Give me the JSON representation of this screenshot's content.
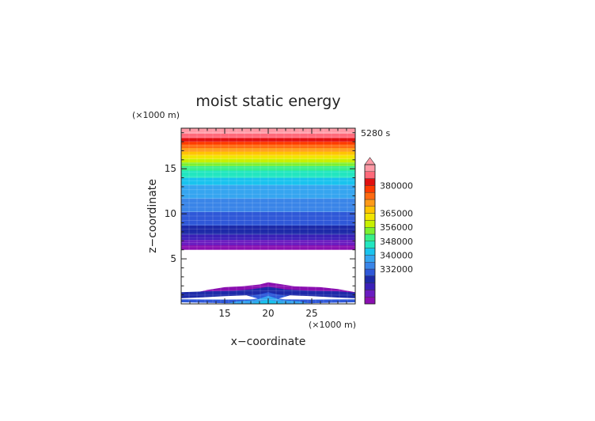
{
  "chart_data": {
    "type": "heatmap",
    "title": "moist static energy",
    "time_label": "5280 s",
    "xlabel": "x−coordinate",
    "ylabel": "z−coordinate",
    "x_unit": "(×1000 m)",
    "y_unit": "(×1000 m)",
    "xlim": [
      10,
      30
    ],
    "ylim": [
      0,
      19.5
    ],
    "x_ticks": [
      "15",
      "20",
      "25"
    ],
    "y_ticks": [
      "5",
      "10",
      "15"
    ],
    "x_tick_values": [
      15,
      20,
      25
    ],
    "y_tick_values": [
      5,
      10,
      15
    ],
    "grid": true,
    "legend": "right",
    "colorbar": {
      "labels": [
        "380000",
        "365000",
        "356000",
        "348000",
        "340000",
        "332000"
      ],
      "extend": "max",
      "colors": [
        "#8a0fb0",
        "#6a1cc0",
        "#3a20b8",
        "#1d2aa8",
        "#2f58d8",
        "#3a85e8",
        "#35a5f0",
        "#19c3ee",
        "#22e6c0",
        "#37f088",
        "#7cf030",
        "#c8f000",
        "#f2e600",
        "#ffc400",
        "#ff9a18",
        "#ff6a10",
        "#ff3a00",
        "#e01010",
        "#ff6a7a",
        "#ff9aa6"
      ]
    },
    "upper_layer_bands": [
      {
        "z": [
          6.0,
          6.5
        ],
        "color": "#8a0fb0"
      },
      {
        "z": [
          6.5,
          7.1
        ],
        "color": "#6a1cc0"
      },
      {
        "z": [
          7.1,
          7.7
        ],
        "color": "#3a20b8"
      },
      {
        "z": [
          7.7,
          8.7
        ],
        "color": "#1d2aa8"
      },
      {
        "z": [
          8.7,
          10.2
        ],
        "color": "#2f58d8"
      },
      {
        "z": [
          10.2,
          11.7
        ],
        "color": "#3a85e8"
      },
      {
        "z": [
          11.7,
          13.2
        ],
        "color": "#35a5f0"
      },
      {
        "z": [
          13.2,
          14.0
        ],
        "color": "#19c3ee"
      },
      {
        "z": [
          14.0,
          14.8
        ],
        "color": "#22e6c0"
      },
      {
        "z": [
          14.8,
          15.3
        ],
        "color": "#37f088"
      },
      {
        "z": [
          15.3,
          15.7
        ],
        "color": "#7cf030"
      },
      {
        "z": [
          15.7,
          16.1
        ],
        "color": "#c8f000"
      },
      {
        "z": [
          16.1,
          16.5
        ],
        "color": "#f2e600"
      },
      {
        "z": [
          16.5,
          16.9
        ],
        "color": "#ffc400"
      },
      {
        "z": [
          16.9,
          17.3
        ],
        "color": "#ff9a18"
      },
      {
        "z": [
          17.3,
          17.7
        ],
        "color": "#ff6a10"
      },
      {
        "z": [
          17.7,
          18.0
        ],
        "color": "#ff3a00"
      },
      {
        "z": [
          18.0,
          18.4
        ],
        "color": "#e01010"
      },
      {
        "z": [
          18.4,
          18.9
        ],
        "color": "#ff6a7a"
      },
      {
        "z": [
          18.9,
          19.5
        ],
        "color": "#ff9aa6"
      }
    ],
    "lower_layer_shapes": [
      {
        "color": "#8a0fb0",
        "points": [
          [
            10,
            0
          ],
          [
            10,
            0.9
          ],
          [
            11,
            1.1
          ],
          [
            13,
            1.55
          ],
          [
            15,
            1.85
          ],
          [
            17,
            1.95
          ],
          [
            19,
            2.15
          ],
          [
            20,
            2.4
          ],
          [
            21,
            2.25
          ],
          [
            23,
            1.95
          ],
          [
            26,
            1.85
          ],
          [
            28,
            1.65
          ],
          [
            30,
            1.3
          ],
          [
            30,
            0
          ]
        ]
      },
      {
        "color": "#1d2aa8",
        "points": [
          [
            10,
            0
          ],
          [
            10,
            1.3
          ],
          [
            13,
            1.4
          ],
          [
            16,
            1.45
          ],
          [
            18,
            1.6
          ],
          [
            20,
            1.9
          ],
          [
            22,
            1.6
          ],
          [
            25,
            1.45
          ],
          [
            28,
            1.4
          ],
          [
            30,
            1.25
          ],
          [
            30,
            0
          ]
        ]
      },
      {
        "color": "#2f58d8",
        "points": [
          [
            10,
            0
          ],
          [
            10,
            0.55
          ],
          [
            14,
            0.62
          ],
          [
            17,
            0.8
          ],
          [
            19,
            1.05
          ],
          [
            20,
            1.3
          ],
          [
            21,
            1.05
          ],
          [
            23,
            0.8
          ],
          [
            26,
            0.62
          ],
          [
            30,
            0.55
          ],
          [
            30,
            0
          ]
        ]
      },
      {
        "color": "#ffffff",
        "points": [
          [
            10,
            0.62
          ],
          [
            12,
            0.7
          ],
          [
            15,
            0.85
          ],
          [
            17.5,
            0.95
          ],
          [
            18.8,
            0.6
          ],
          [
            18,
            0.5
          ],
          [
            15,
            0.48
          ],
          [
            12,
            0.5
          ],
          [
            10,
            0.52
          ]
        ]
      },
      {
        "color": "#ffffff",
        "points": [
          [
            30,
            0.62
          ],
          [
            28,
            0.7
          ],
          [
            25,
            0.85
          ],
          [
            22.5,
            0.95
          ],
          [
            21.2,
            0.6
          ],
          [
            22,
            0.5
          ],
          [
            25,
            0.48
          ],
          [
            28,
            0.5
          ],
          [
            30,
            0.52
          ]
        ]
      },
      {
        "color": "#35a5f0",
        "points": [
          [
            15,
            0
          ],
          [
            16.5,
            0.28
          ],
          [
            18.5,
            0.42
          ],
          [
            20,
            0.9
          ],
          [
            21.5,
            0.42
          ],
          [
            23.5,
            0.28
          ],
          [
            25,
            0
          ]
        ]
      },
      {
        "color": "#19c3ee",
        "points": [
          [
            17.5,
            0
          ],
          [
            18.8,
            0.18
          ],
          [
            20,
            0.45
          ],
          [
            21.2,
            0.18
          ],
          [
            22.5,
            0
          ]
        ]
      },
      {
        "color": "#ffffff",
        "points": [
          [
            10,
            0
          ],
          [
            10,
            0.18
          ],
          [
            13,
            0.12
          ],
          [
            16,
            0.05
          ],
          [
            17,
            0
          ]
        ]
      },
      {
        "color": "#ffffff",
        "points": [
          [
            30,
            0
          ],
          [
            30,
            0.18
          ],
          [
            27,
            0.12
          ],
          [
            24,
            0.05
          ],
          [
            23,
            0
          ]
        ]
      }
    ]
  }
}
